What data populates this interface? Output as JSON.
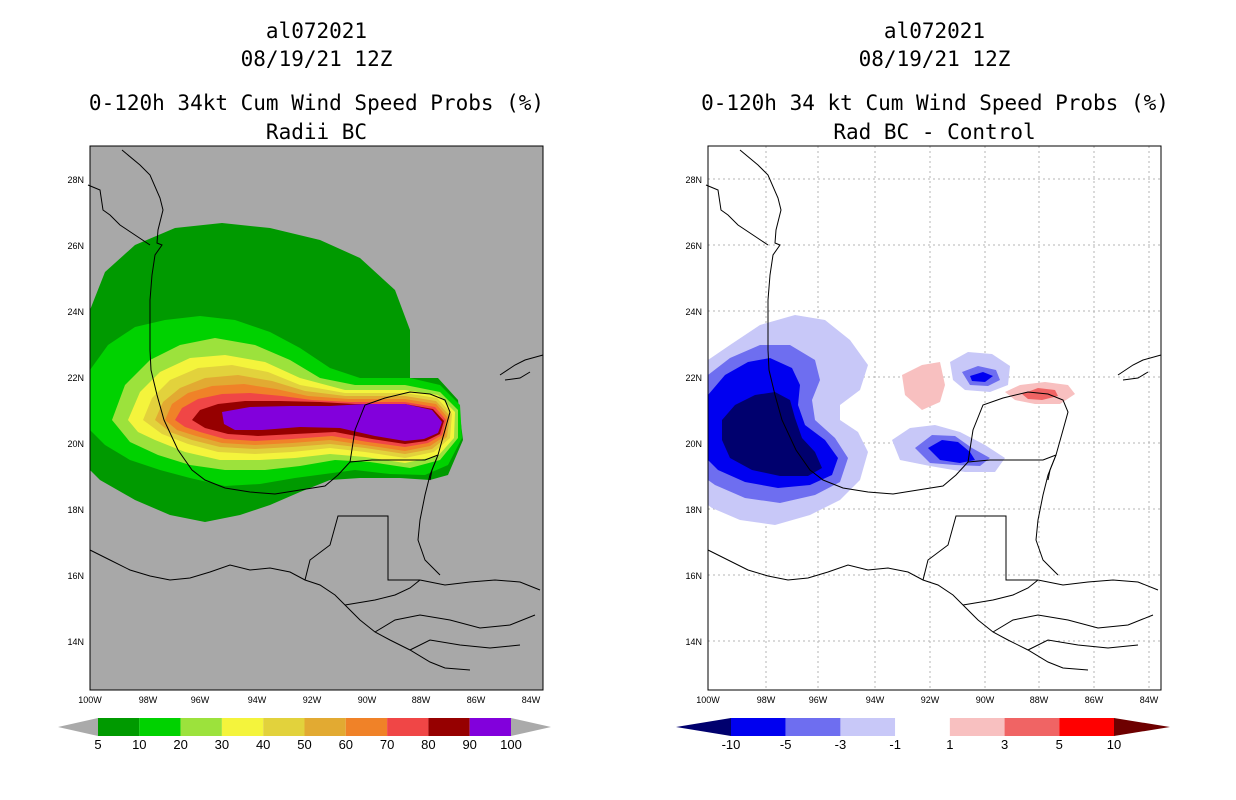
{
  "left_panel": {
    "storm_id": "al072021",
    "datetime": "08/19/21 12Z",
    "title": "0-120h 34kt Cum Wind Speed Probs (%)",
    "subtitle": "Radii BC",
    "colorbar": {
      "labels": [
        "5",
        "10",
        "20",
        "30",
        "40",
        "50",
        "60",
        "70",
        "80",
        "90",
        "100"
      ],
      "colors": [
        "#009a00",
        "#00d200",
        "#9ce23c",
        "#f4f43c",
        "#e2d23c",
        "#e2aa32",
        "#f08228",
        "#f04646",
        "#960000",
        "#8200dc"
      ],
      "below_color": "#aaaaaa",
      "above_color": "#aaaaaa"
    },
    "background_color": "#a8a8a8"
  },
  "right_panel": {
    "storm_id": "al072021",
    "datetime": "08/19/21 12Z",
    "title": "0-120h 34 kt Cum Wind Speed Probs (%)",
    "subtitle": "Rad BC - Control",
    "colorbar": {
      "labels": [
        "-10",
        "-5",
        "-3",
        "-1",
        "1",
        "3",
        "5",
        "10"
      ],
      "colors": [
        "#0000f0",
        "#6e6ef0",
        "#c8c8f8",
        "#ffffff",
        "#f8c0c0",
        "#f06464",
        "#ff0000"
      ],
      "below_color": "#00006e",
      "above_color": "#6e0000"
    },
    "background_color": "#ffffff"
  },
  "axes": {
    "lat_labels": [
      "28N",
      "26N",
      "24N",
      "22N",
      "20N",
      "18N",
      "16N",
      "14N"
    ],
    "lon_labels": [
      "100W",
      "98W",
      "96W",
      "94W",
      "92W",
      "90W",
      "88W",
      "86W",
      "84W"
    ]
  }
}
